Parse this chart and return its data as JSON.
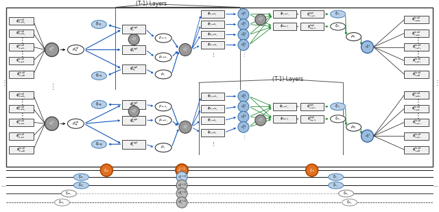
{
  "bg_color": "#ffffff",
  "c_blue": "#1155bb",
  "c_green": "#228833",
  "c_black": "#111111",
  "c_gray": "#888888",
  "c_box_fill": "#f0f0f0",
  "c_box_border": "#444444",
  "c_node_gray": "#999999",
  "c_node_blue": "#9bbcdd",
  "c_node_blue2": "#b8d0e8",
  "c_ellipse_blue": "#b8d0e8",
  "c_ellipse_border_blue": "#5588bb",
  "c_orange": "#e07020",
  "c_orange_border": "#aa4400"
}
